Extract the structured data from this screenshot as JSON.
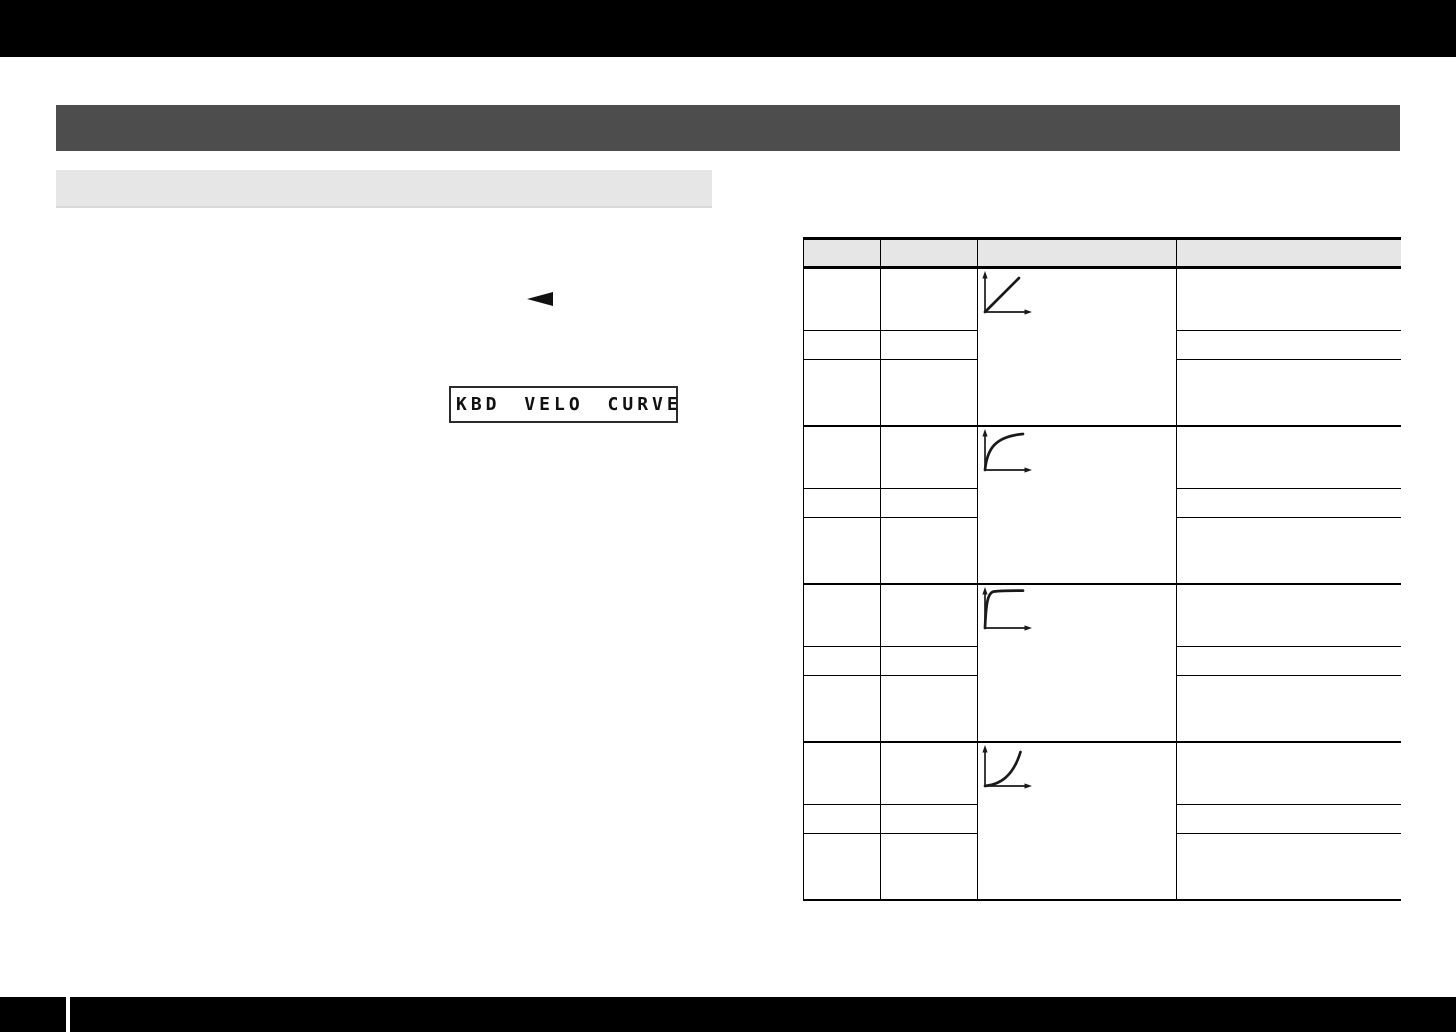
{
  "lcd": {
    "text": "KBD VELO CURVE"
  },
  "icons": {
    "back_triangle": "left-pointing-solid-triangle"
  },
  "colors": {
    "top_banner": "#000000",
    "section_bar": "#4d4d4d",
    "subsection_bar": "#e6e6e6",
    "table_header_fill": "#e6e6e6",
    "table_lines": "#000000"
  },
  "table": {
    "header_cells": [
      "",
      "",
      "",
      ""
    ],
    "note": "all table text cells are blank in the scan; only curve graphs are rendered",
    "groups": [
      {
        "curve": "linear",
        "rows": [
          "",
          "",
          ""
        ],
        "descriptions": [
          "",
          "",
          ""
        ]
      },
      {
        "curve": "convex",
        "rows": [
          "",
          "",
          ""
        ],
        "descriptions": [
          "",
          "",
          ""
        ]
      },
      {
        "curve": "hard-knee",
        "rows": [
          "",
          "",
          ""
        ],
        "descriptions": [
          "",
          "",
          ""
        ]
      },
      {
        "curve": "concave",
        "rows": [
          "",
          "",
          ""
        ],
        "descriptions": [
          "",
          "",
          ""
        ]
      }
    ]
  }
}
